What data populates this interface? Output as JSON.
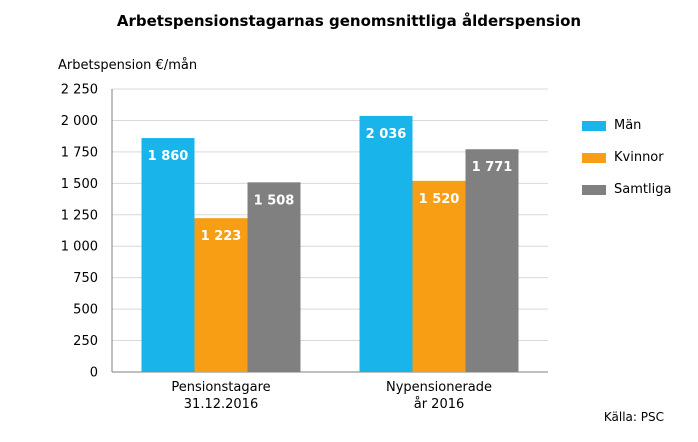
{
  "title": "Arbetspensionstagarnas genomsnittliga ålderspension",
  "source": "Källa: PSC",
  "chart_data": {
    "type": "bar",
    "title": "Arbetspensionstagarnas genomsnittliga ålderspension",
    "ylabel": "Arbetspension €/mån",
    "xlabel": "",
    "ylim": [
      0,
      2250
    ],
    "yticks": [
      0,
      250,
      500,
      750,
      1000,
      1250,
      1500,
      1750,
      2000,
      2250
    ],
    "ytick_labels": [
      "0",
      "250",
      "500",
      "750",
      "1 000",
      "1 250",
      "1 500",
      "1 750",
      "2 000",
      "2 250"
    ],
    "grid": true,
    "legend_position": "right",
    "categories": [
      [
        "Pensionstagare",
        "31.12.2016"
      ],
      [
        "Nypensionerade",
        "år 2016"
      ]
    ],
    "series": [
      {
        "name": "Män",
        "color": "#18b4ea",
        "values": [
          1860,
          2036
        ],
        "labels": [
          "1 860",
          "2 036"
        ]
      },
      {
        "name": "Kvinnor",
        "color": "#f89e14",
        "values": [
          1223,
          1520
        ],
        "labels": [
          "1 223",
          "1 520"
        ]
      },
      {
        "name": "Samtliga",
        "color": "#808080",
        "values": [
          1508,
          1771
        ],
        "labels": [
          "1 508",
          "1 771"
        ]
      }
    ]
  }
}
